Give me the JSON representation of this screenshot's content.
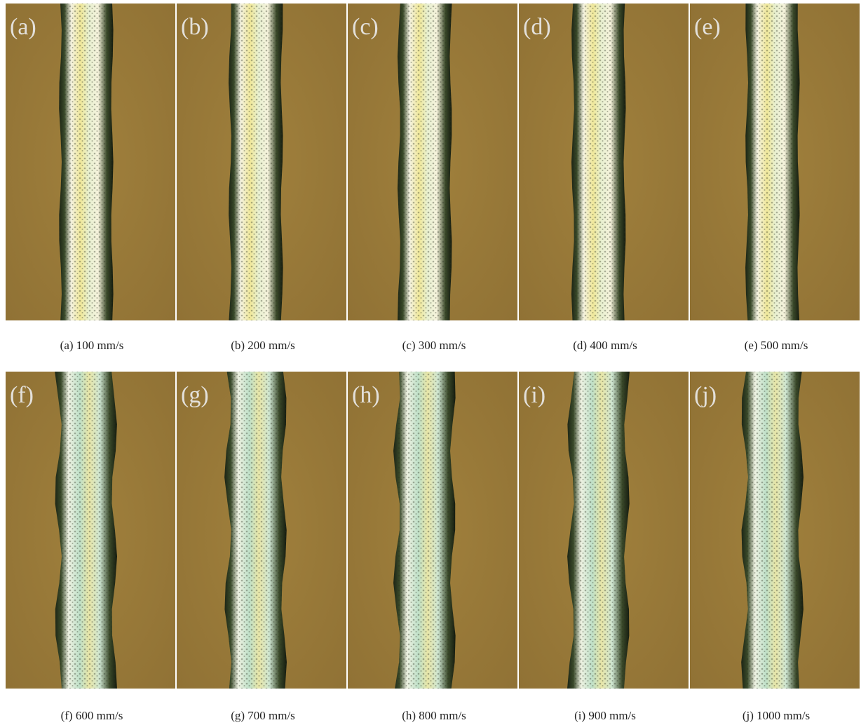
{
  "panels": [
    {
      "tag": "(a)",
      "caption": "(a) 100 mm/s"
    },
    {
      "tag": "(b)",
      "caption": "(b) 200 mm/s"
    },
    {
      "tag": "(c)",
      "caption": "(c) 300 mm/s"
    },
    {
      "tag": "(d)",
      "caption": "(d) 400 mm/s"
    },
    {
      "tag": "(e)",
      "caption": "(e) 500 mm/s"
    },
    {
      "tag": "(f)",
      "caption": "(f) 600 mm/s"
    },
    {
      "tag": "(g)",
      "caption": "(g) 700 mm/s"
    },
    {
      "tag": "(h)",
      "caption": "(h) 800 mm/s"
    },
    {
      "tag": "(i)",
      "caption": "(i) 900 mm/s"
    },
    {
      "tag": "(j)",
      "caption": "(j) 1000 mm/s"
    }
  ]
}
